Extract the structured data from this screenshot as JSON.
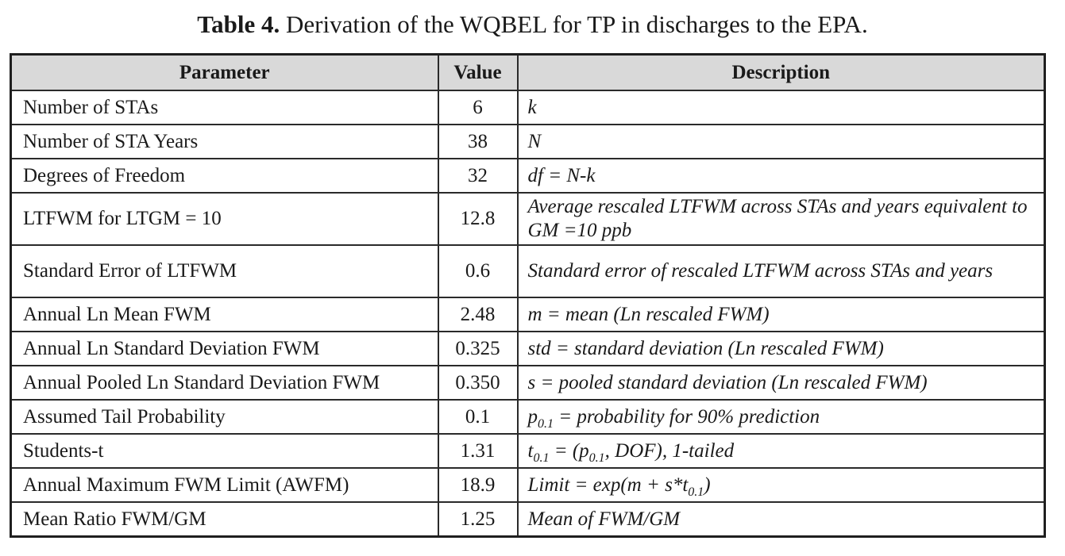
{
  "caption": {
    "label": "Table 4.",
    "text": " Derivation of the WQBEL for TP in discharges to the EPA."
  },
  "table": {
    "headers": [
      "Parameter",
      "Value",
      "Description"
    ],
    "rows": [
      {
        "parameter": "Number of STAs",
        "value": "6",
        "description": "k"
      },
      {
        "parameter": "Number of STA Years",
        "value": "38",
        "description": "N"
      },
      {
        "parameter": "Degrees of Freedom",
        "value": "32",
        "description": "df = N-k"
      },
      {
        "parameter": "LTFWM for LTGM = 10",
        "value": "12.8",
        "description": "Average rescaled LTFWM across STAs and years equivalent to GM =10 ppb"
      },
      {
        "parameter": "Standard Error of LTFWM",
        "value": "0.6",
        "description": "Standard error of rescaled LTFWM across STAs and years"
      },
      {
        "parameter": "Annual Ln Mean FWM",
        "value": "2.48",
        "description": "m = mean (Ln rescaled FWM)"
      },
      {
        "parameter": "Annual Ln Standard Deviation FWM",
        "value": "0.325",
        "description": "std = standard deviation (Ln rescaled FWM)"
      },
      {
        "parameter": "Annual Pooled Ln Standard Deviation FWM",
        "value": "0.350",
        "description": "s = pooled standard deviation (Ln rescaled FWM)"
      },
      {
        "parameter": "Assumed Tail Probability",
        "value": "0.1",
        "description_parts": {
          "p": "p",
          "p_sub": "0.1",
          "rest": " = probability for 90% prediction"
        }
      },
      {
        "parameter": "Students-t",
        "value": "1.31",
        "description_parts": {
          "t": "t",
          "t_sub": "0.1",
          "mid": " = (p",
          "p_sub": "0.1",
          "rest": ", DOF), 1-tailed"
        }
      },
      {
        "parameter": "Annual Maximum FWM Limit (AWFM)",
        "value": "18.9",
        "description_parts": {
          "pre": "Limit = exp(m + s*t",
          "t_sub": "0.1",
          "post": ")"
        }
      },
      {
        "parameter": "Mean Ratio FWM/GM",
        "value": "1.25",
        "description": "Mean of FWM/GM"
      }
    ]
  }
}
